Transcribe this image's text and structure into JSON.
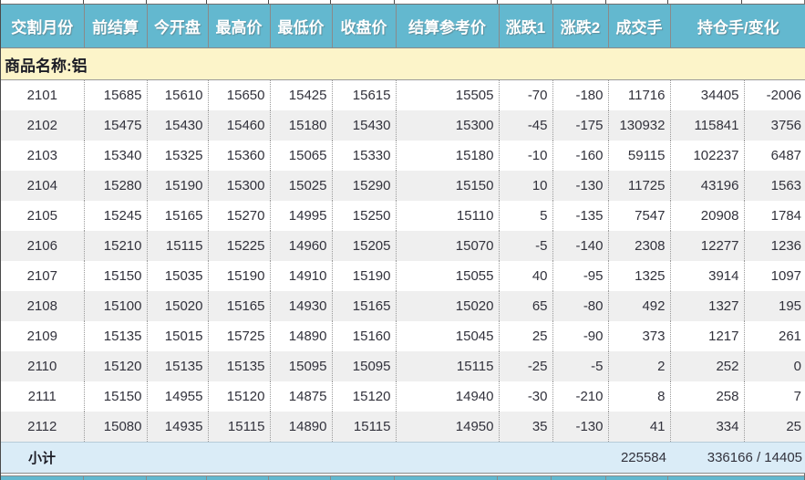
{
  "table": {
    "columns": [
      "交割月份",
      "前结算",
      "今开盘",
      "最高价",
      "最低价",
      "收盘价",
      "结算参考价",
      "涨跌1",
      "涨跌2",
      "成交手",
      "持仓手/变化"
    ],
    "product_label": "商品名称:铝",
    "rows": [
      [
        "2101",
        "15685",
        "15610",
        "15650",
        "15425",
        "15615",
        "15505",
        "-70",
        "-180",
        "11716",
        "34405",
        "-2006"
      ],
      [
        "2102",
        "15475",
        "15430",
        "15460",
        "15180",
        "15430",
        "15300",
        "-45",
        "-175",
        "130932",
        "115841",
        "3756"
      ],
      [
        "2103",
        "15340",
        "15325",
        "15360",
        "15065",
        "15330",
        "15180",
        "-10",
        "-160",
        "59115",
        "102237",
        "6487"
      ],
      [
        "2104",
        "15280",
        "15190",
        "15300",
        "15025",
        "15290",
        "15150",
        "10",
        "-130",
        "11725",
        "43196",
        "1563"
      ],
      [
        "2105",
        "15245",
        "15165",
        "15270",
        "14995",
        "15250",
        "15110",
        "5",
        "-135",
        "7547",
        "20908",
        "1784"
      ],
      [
        "2106",
        "15210",
        "15115",
        "15225",
        "14960",
        "15205",
        "15070",
        "-5",
        "-140",
        "2308",
        "12277",
        "1236"
      ],
      [
        "2107",
        "15150",
        "15035",
        "15190",
        "14910",
        "15190",
        "15055",
        "40",
        "-95",
        "1325",
        "3914",
        "1097"
      ],
      [
        "2108",
        "15100",
        "15020",
        "15165",
        "14930",
        "15165",
        "15020",
        "65",
        "-80",
        "492",
        "1327",
        "195"
      ],
      [
        "2109",
        "15135",
        "15015",
        "15725",
        "14890",
        "15160",
        "15045",
        "25",
        "-90",
        "373",
        "1217",
        "261"
      ],
      [
        "2110",
        "15120",
        "15135",
        "15135",
        "15095",
        "15095",
        "15115",
        "-25",
        "-5",
        "2",
        "252",
        "0"
      ],
      [
        "2111",
        "15150",
        "14955",
        "15120",
        "14875",
        "15120",
        "14940",
        "-30",
        "-210",
        "8",
        "258",
        "7"
      ],
      [
        "2112",
        "15080",
        "14935",
        "15115",
        "14890",
        "15115",
        "14950",
        "35",
        "-130",
        "41",
        "334",
        "25"
      ]
    ],
    "subtotal": {
      "label": "小计",
      "volume_total": "225584",
      "open_interest_total": "336166 / 14405"
    }
  },
  "colors": {
    "header_bg": "#63b8cf",
    "header_text": "#ffffff",
    "product_row_bg": "#fcf4c9",
    "subtotal_bg": "#daecf7",
    "stripe_bg": "#efefef",
    "text": "#32323c"
  }
}
